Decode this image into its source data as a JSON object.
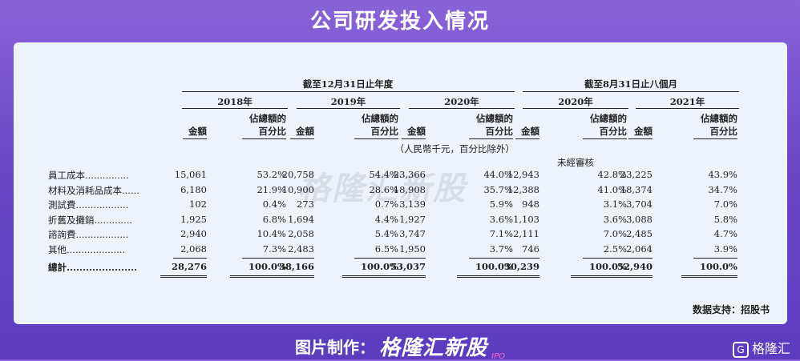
{
  "title": "公司研发投入情况",
  "period_header_1": "截至12月31日止年度",
  "period_header_2": "截至8月31日止八個月",
  "years": [
    "2018年",
    "2019年",
    "2020年",
    "2020年",
    "2021年"
  ],
  "col_amount": "金額",
  "col_pct_line1": "佔總額的",
  "col_pct_line2": "百分比",
  "unit_note": "（人民幣千元，百分比除外）",
  "unaudited": "未經審核",
  "rows": [
    {
      "label": "員工成本",
      "dots": "...............",
      "v": [
        "15,061",
        "53.2%",
        "20,758",
        "54.4%",
        "23,366",
        "44.0%",
        "12,943",
        "42.8%",
        "23,225",
        "43.9%"
      ]
    },
    {
      "label": "材料及消耗品成本",
      "dots": "......",
      "v": [
        "6,180",
        "21.9%",
        "10,900",
        "28.6%",
        "18,908",
        "35.7%",
        "12,388",
        "41.0%",
        "18,374",
        "34.7%"
      ]
    },
    {
      "label": "測試費",
      "dots": "..................",
      "v": [
        "102",
        "0.4%",
        "273",
        "0.7%",
        "3,139",
        "5.9%",
        "948",
        "3.1%",
        "3,704",
        "7.0%"
      ]
    },
    {
      "label": "折舊及攤銷",
      "dots": ".............",
      "v": [
        "1,925",
        "6.8%",
        "1,694",
        "4.4%",
        "1,927",
        "3.6%",
        "1,103",
        "3.6%",
        "3,088",
        "5.8%"
      ]
    },
    {
      "label": "諮詢費",
      "dots": "..................",
      "v": [
        "2,940",
        "10.4%",
        "2,058",
        "5.4%",
        "3,747",
        "7.1%",
        "2,111",
        "7.0%",
        "2,485",
        "4.7%"
      ]
    },
    {
      "label": "其他",
      "dots": "....................",
      "v": [
        "2,068",
        "7.3%",
        "2,483",
        "6.5%",
        "1,950",
        "3.7%",
        "746",
        "2.5%",
        "2,064",
        "3.9%"
      ]
    }
  ],
  "total": {
    "label": "總計",
    "dots": "......................",
    "v": [
      "28,276",
      "100.0%",
      "38,166",
      "100.0%",
      "53,037",
      "100.0%",
      "30,239",
      "100.0%",
      "52,940",
      "100.0%"
    ]
  },
  "watermark": "格隆汇新股",
  "source": "数据支持：招股书",
  "footer_label": "图片制作：",
  "footer_brand": "格隆汇新股",
  "footer_ipo": "IPO",
  "corner_logo": "格隆汇"
}
